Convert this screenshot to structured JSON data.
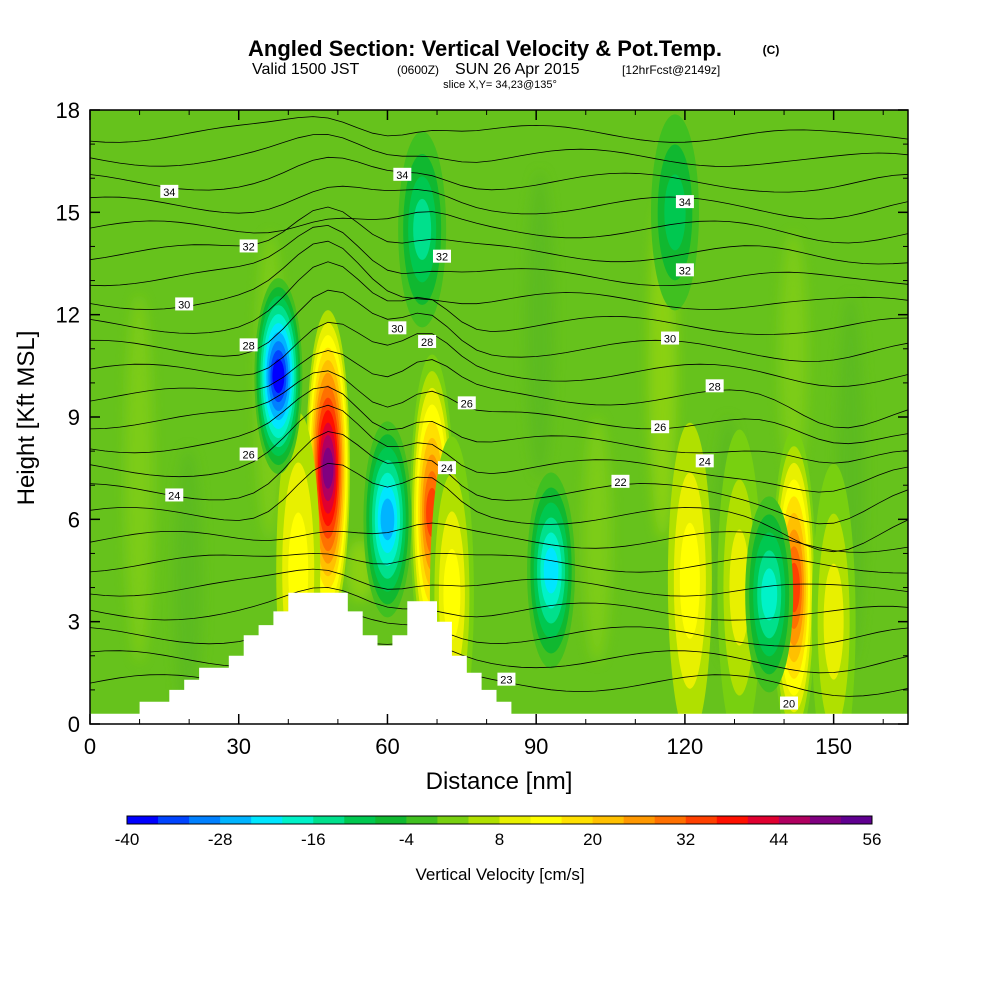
{
  "title": {
    "main": "Angled Section: Vertical Velocity & Pot.Temp.",
    "main_unit": "(C)",
    "valid_prefix": "Valid 1500 JST",
    "valid_z": "(0600Z)",
    "valid_date": "SUN 26 Apr 2015",
    "valid_fcst": "[12hrFcst@2149z]",
    "slice": "slice X,Y= 34,23@135°"
  },
  "chart_data": {
    "type": "heatmap",
    "xlabel": "Distance [nm]",
    "ylabel": "Height [Kft MSL]",
    "xlim": [
      0,
      165
    ],
    "ylim": [
      0,
      18
    ],
    "x_ticks": [
      "0",
      "30",
      "60",
      "90",
      "120",
      "150"
    ],
    "y_ticks": [
      "0",
      "3",
      "6",
      "9",
      "12",
      "15",
      "18"
    ],
    "colorbar": {
      "label": "Vertical Velocity [cm/s]",
      "tick_labels": [
        "-40",
        "-28",
        "-16",
        "-4",
        "8",
        "20",
        "32",
        "44",
        "56"
      ],
      "colors": [
        "#0000ff",
        "#0044ff",
        "#0080ff",
        "#00b4ff",
        "#00e6ff",
        "#00f2c8",
        "#00e08c",
        "#00c850",
        "#10b830",
        "#40c020",
        "#78d010",
        "#b0e000",
        "#e8f000",
        "#ffff00",
        "#ffe000",
        "#ffc000",
        "#ff9800",
        "#ff7000",
        "#ff4000",
        "#ff1000",
        "#e00030",
        "#b00060",
        "#800080",
        "#600090"
      ]
    },
    "updrafts": [
      {
        "x": 48,
        "z": 7.5,
        "peak": 48
      },
      {
        "x": 69,
        "z": 6.2,
        "peak": 34
      },
      {
        "x": 142,
        "z": 4.0,
        "peak": 34
      },
      {
        "x": 42,
        "z": 4.5,
        "peak": 12
      },
      {
        "x": 73,
        "z": 3.8,
        "peak": 14
      },
      {
        "x": 121,
        "z": 4.2,
        "peak": 12
      },
      {
        "x": 131,
        "z": 4.0,
        "peak": 10
      },
      {
        "x": 150,
        "z": 3.0,
        "peak": 8
      }
    ],
    "downdrafts": [
      {
        "x": 38,
        "z": 10.2,
        "peak": -40
      },
      {
        "x": 60,
        "z": 6.0,
        "peak": -26
      },
      {
        "x": 93,
        "z": 4.5,
        "peak": -22
      },
      {
        "x": 137,
        "z": 3.8,
        "peak": -18
      },
      {
        "x": 67,
        "z": 14.5,
        "peak": -14
      },
      {
        "x": 118,
        "z": 15.0,
        "peak": -10
      }
    ],
    "terrain": [
      [
        0,
        0.3
      ],
      [
        10,
        0.3
      ],
      [
        10,
        0.65
      ],
      [
        16,
        0.65
      ],
      [
        16,
        1.0
      ],
      [
        19,
        1.0
      ],
      [
        19,
        1.3
      ],
      [
        22,
        1.3
      ],
      [
        22,
        1.65
      ],
      [
        28,
        1.65
      ],
      [
        28,
        2.0
      ],
      [
        31,
        2.0
      ],
      [
        31,
        2.6
      ],
      [
        34,
        2.6
      ],
      [
        34,
        2.9
      ],
      [
        37,
        2.9
      ],
      [
        37,
        3.3
      ],
      [
        40,
        3.3
      ],
      [
        40,
        3.85
      ],
      [
        52,
        3.85
      ],
      [
        52,
        3.3
      ],
      [
        55,
        3.3
      ],
      [
        55,
        2.6
      ],
      [
        58,
        2.6
      ],
      [
        58,
        2.3
      ],
      [
        61,
        2.3
      ],
      [
        61,
        2.6
      ],
      [
        64,
        2.6
      ],
      [
        64,
        3.6
      ],
      [
        70,
        3.6
      ],
      [
        70,
        3.0
      ],
      [
        73,
        3.0
      ],
      [
        73,
        2.0
      ],
      [
        76,
        2.0
      ],
      [
        76,
        1.5
      ],
      [
        79,
        1.5
      ],
      [
        79,
        1.0
      ],
      [
        82,
        1.0
      ],
      [
        82,
        0.65
      ],
      [
        85,
        0.65
      ],
      [
        85,
        0.3
      ],
      [
        165,
        0.3
      ]
    ],
    "contour_labels": [
      {
        "text": "34",
        "x": 16,
        "z": 15.6
      },
      {
        "text": "32",
        "x": 32,
        "z": 14.0
      },
      {
        "text": "30",
        "x": 19,
        "z": 12.3
      },
      {
        "text": "28",
        "x": 32,
        "z": 11.1
      },
      {
        "text": "26",
        "x": 32,
        "z": 7.9
      },
      {
        "text": "24",
        "x": 17,
        "z": 6.7
      },
      {
        "text": "34",
        "x": 63,
        "z": 16.1
      },
      {
        "text": "32",
        "x": 71,
        "z": 13.7
      },
      {
        "text": "30",
        "x": 62,
        "z": 11.6
      },
      {
        "text": "28",
        "x": 68,
        "z": 11.2
      },
      {
        "text": "26",
        "x": 76,
        "z": 9.4
      },
      {
        "text": "24",
        "x": 72,
        "z": 7.5
      },
      {
        "text": "23",
        "x": 84,
        "z": 1.3
      },
      {
        "text": "34",
        "x": 120,
        "z": 15.3
      },
      {
        "text": "32",
        "x": 120,
        "z": 13.3
      },
      {
        "text": "30",
        "x": 117,
        "z": 11.3
      },
      {
        "text": "28",
        "x": 126,
        "z": 9.9
      },
      {
        "text": "26",
        "x": 115,
        "z": 8.7
      },
      {
        "text": "24",
        "x": 124,
        "z": 7.7
      },
      {
        "text": "22",
        "x": 107,
        "z": 7.1
      },
      {
        "text": "20",
        "x": 141,
        "z": 0.6
      }
    ]
  }
}
